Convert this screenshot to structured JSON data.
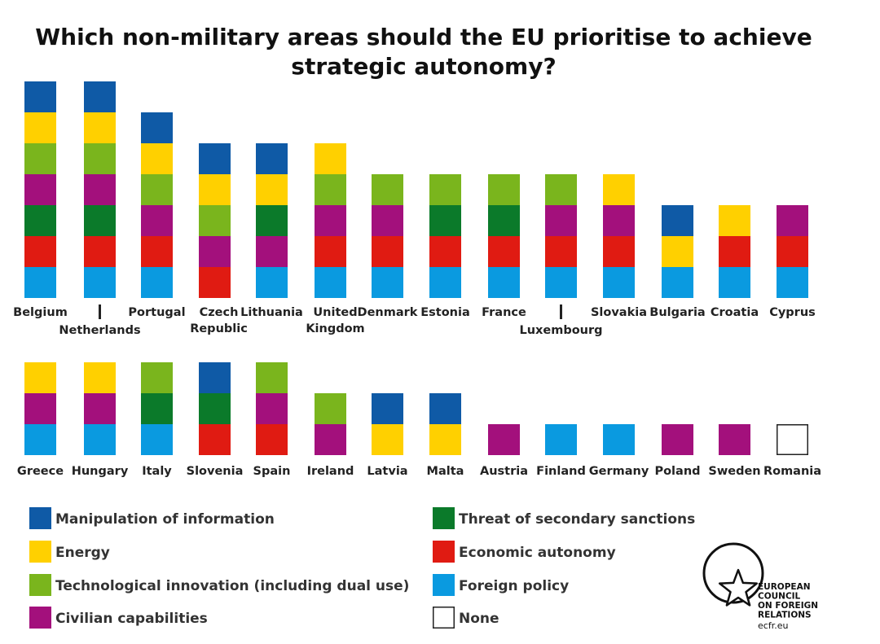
{
  "chart_data": {
    "type": "stacked-blocks",
    "title": "Which non-military areas should the EU prioritise to achieve strategic autonomy?",
    "areas": [
      {
        "key": "manipulation",
        "name": "Manipulation of information",
        "color": "#0f5aa6"
      },
      {
        "key": "energy",
        "name": "Energy",
        "color": "#ffd000"
      },
      {
        "key": "tech",
        "name": "Technological innovation (including dual use)",
        "color": "#7ab51d"
      },
      {
        "key": "civilian",
        "name": "Civilian capabilities",
        "color": "#a3107c"
      },
      {
        "key": "sanctions",
        "name": "Threat of secondary sanctions",
        "color": "#0b7a2a"
      },
      {
        "key": "economic",
        "name": "Economic autonomy",
        "color": "#e01b12"
      },
      {
        "key": "foreign",
        "name": "Foreign policy",
        "color": "#0a9ae0"
      },
      {
        "key": "none",
        "name": "None",
        "color": "#ffffff"
      }
    ],
    "rows": [
      [
        {
          "country": "Belgium",
          "areas": [
            "manipulation",
            "energy",
            "tech",
            "civilian",
            "sanctions",
            "economic",
            "foreign"
          ]
        },
        {
          "country": "Netherlands",
          "areas": [
            "manipulation",
            "energy",
            "tech",
            "civilian",
            "sanctions",
            "economic",
            "foreign"
          ]
        },
        {
          "country": "Portugal",
          "areas": [
            "manipulation",
            "energy",
            "tech",
            "civilian",
            "economic",
            "foreign"
          ]
        },
        {
          "country": "Czech Republic",
          "areas": [
            "manipulation",
            "energy",
            "tech",
            "civilian",
            "economic"
          ]
        },
        {
          "country": "Lithuania",
          "areas": [
            "manipulation",
            "energy",
            "sanctions",
            "civilian",
            "foreign"
          ]
        },
        {
          "country": "United Kingdom",
          "areas": [
            "energy",
            "tech",
            "civilian",
            "economic",
            "foreign"
          ]
        },
        {
          "country": "Denmark",
          "areas": [
            "tech",
            "civilian",
            "economic",
            "foreign"
          ]
        },
        {
          "country": "Estonia",
          "areas": [
            "tech",
            "sanctions",
            "economic",
            "foreign"
          ]
        },
        {
          "country": "France",
          "areas": [
            "tech",
            "sanctions",
            "economic",
            "foreign"
          ]
        },
        {
          "country": "Luxembourg",
          "areas": [
            "tech",
            "civilian",
            "economic",
            "foreign"
          ]
        },
        {
          "country": "Slovakia",
          "areas": [
            "energy",
            "civilian",
            "economic",
            "foreign"
          ]
        },
        {
          "country": "Bulgaria",
          "areas": [
            "manipulation",
            "energy",
            "foreign"
          ]
        },
        {
          "country": "Croatia",
          "areas": [
            "energy",
            "economic",
            "foreign"
          ]
        },
        {
          "country": "Cyprus",
          "areas": [
            "civilian",
            "economic",
            "foreign"
          ]
        }
      ],
      [
        {
          "country": "Greece",
          "areas": [
            "energy",
            "civilian",
            "foreign"
          ]
        },
        {
          "country": "Hungary",
          "areas": [
            "energy",
            "civilian",
            "foreign"
          ]
        },
        {
          "country": "Italy",
          "areas": [
            "tech",
            "sanctions",
            "foreign"
          ]
        },
        {
          "country": "Slovenia",
          "areas": [
            "manipulation",
            "sanctions",
            "economic"
          ]
        },
        {
          "country": "Spain",
          "areas": [
            "tech",
            "civilian",
            "economic"
          ]
        },
        {
          "country": "Ireland",
          "areas": [
            "tech",
            "civilian"
          ]
        },
        {
          "country": "Latvia",
          "areas": [
            "manipulation",
            "energy"
          ]
        },
        {
          "country": "Malta",
          "areas": [
            "manipulation",
            "energy"
          ]
        },
        {
          "country": "Austria",
          "areas": [
            "civilian"
          ]
        },
        {
          "country": "Finland",
          "areas": [
            "foreign"
          ]
        },
        {
          "country": "Germany",
          "areas": [
            "foreign"
          ]
        },
        {
          "country": "Poland",
          "areas": [
            "civilian"
          ]
        },
        {
          "country": "Sweden",
          "areas": [
            "civilian"
          ]
        },
        {
          "country": "Romania",
          "areas": [
            "none"
          ]
        }
      ]
    ]
  },
  "logo": {
    "lines": [
      "EUROPEAN",
      "COUNCIL",
      "ON FOREIGN",
      "RELATIONS"
    ],
    "url": "ecfr.eu"
  }
}
